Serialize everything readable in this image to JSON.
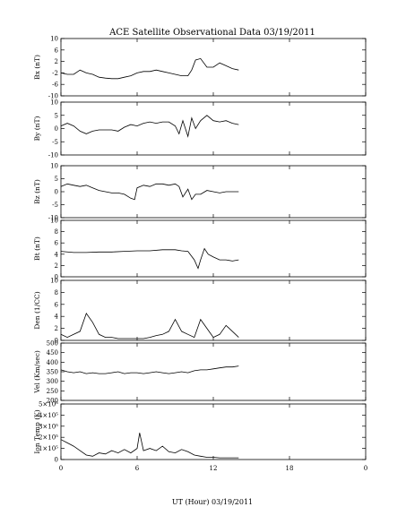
{
  "chart_data": {
    "type": "line",
    "title": "ACE Satellite Observational Data   03/19/2011",
    "xlabel": "UT (Hour)   03/19/2011",
    "x_ticks": [
      "0",
      "6",
      "12",
      "18",
      "0"
    ],
    "xlim": [
      0,
      24
    ],
    "data_extent_hours": 14,
    "grid": false,
    "panels": [
      {
        "name": "Bx",
        "ylabel": "Bx (nT)",
        "ylim": [
          -10,
          10
        ],
        "y_ticks": [
          "10",
          "6",
          "2",
          "-2",
          "-6",
          "-10"
        ],
        "y_tick_values": [
          10,
          6,
          2,
          -2,
          -6,
          -10
        ],
        "x": [
          0,
          0.5,
          1,
          1.5,
          2,
          2.5,
          3,
          3.5,
          4,
          4.5,
          5,
          5.5,
          6,
          6.5,
          7,
          7.5,
          8,
          8.5,
          9,
          9.5,
          10,
          10.3,
          10.6,
          11,
          11.5,
          12,
          12.5,
          13,
          13.5,
          14
        ],
        "y": [
          -2,
          -2.5,
          -2.5,
          -1,
          -2,
          -2.5,
          -3.5,
          -3.8,
          -4,
          -4,
          -3.5,
          -3,
          -2,
          -1.5,
          -1.5,
          -1,
          -1.5,
          -2,
          -2.5,
          -3,
          -3,
          -1,
          2.5,
          3,
          0,
          0,
          1.5,
          0.5,
          -0.5,
          -1
        ]
      },
      {
        "name": "By",
        "ylabel": "By (nT)",
        "ylim": [
          -10,
          10
        ],
        "y_ticks": [
          "10",
          "5",
          "0",
          "-5",
          "-10"
        ],
        "y_tick_values": [
          10,
          5,
          0,
          -5,
          -10
        ],
        "x": [
          0,
          0.5,
          1,
          1.5,
          2,
          2.5,
          3,
          3.5,
          4,
          4.5,
          5,
          5.5,
          6,
          6.5,
          7,
          7.5,
          8,
          8.5,
          9,
          9.3,
          9.6,
          10,
          10.3,
          10.6,
          11,
          11.5,
          12,
          12.5,
          13,
          13.5,
          14
        ],
        "y": [
          1,
          2,
          1,
          -1,
          -2,
          -1,
          -0.5,
          -0.5,
          -0.5,
          -1,
          0.5,
          1.5,
          1,
          2,
          2.5,
          2,
          2.5,
          2.5,
          1,
          -2,
          3,
          -3,
          4,
          0,
          3,
          5,
          3,
          2.5,
          3,
          2,
          1.5
        ]
      },
      {
        "name": "Bz",
        "ylabel": "Bz (nT)",
        "ylim": [
          -10,
          10
        ],
        "y_ticks": [
          "10",
          "5",
          "0",
          "-5",
          "-10"
        ],
        "y_tick_values": [
          10,
          5,
          0,
          -5,
          -10
        ],
        "x": [
          0,
          0.5,
          1,
          1.5,
          2,
          2.5,
          3,
          3.5,
          4,
          4.5,
          5,
          5.5,
          5.8,
          6,
          6.5,
          7,
          7.5,
          8,
          8.5,
          9,
          9.3,
          9.6,
          10,
          10.3,
          10.6,
          11,
          11.5,
          12,
          12.5,
          13,
          13.5,
          14
        ],
        "y": [
          2,
          3,
          2.5,
          2,
          2.5,
          1.5,
          0.5,
          0,
          -0.5,
          -0.5,
          -1,
          -2.5,
          -3,
          1.5,
          2.5,
          2,
          3,
          3,
          2.5,
          3,
          2,
          -2,
          1,
          -3,
          -1,
          -1,
          0.5,
          0,
          -0.5,
          0,
          0,
          0
        ]
      },
      {
        "name": "Bt",
        "ylabel": "Bt (nT)",
        "ylim": [
          0,
          10
        ],
        "y_ticks": [
          "10",
          "8",
          "6",
          "4",
          "2",
          "0"
        ],
        "y_tick_values": [
          10,
          8,
          6,
          4,
          2,
          0
        ],
        "x": [
          0,
          1,
          2,
          3,
          4,
          5,
          6,
          7,
          8,
          9,
          9.5,
          10,
          10.5,
          10.8,
          11,
          11.3,
          11.6,
          12,
          12.5,
          13,
          13.5,
          14
        ],
        "y": [
          4.5,
          4.3,
          4.3,
          4.4,
          4.4,
          4.5,
          4.6,
          4.6,
          4.8,
          4.8,
          4.6,
          4.5,
          3,
          1.5,
          3,
          5,
          4,
          3.5,
          3,
          3,
          2.8,
          3
        ]
      },
      {
        "name": "Den",
        "ylabel": "Den (1/CC)",
        "ylim": [
          0,
          10
        ],
        "y_ticks": [
          "10",
          "8",
          "6",
          "4",
          "2",
          "0"
        ],
        "y_tick_values": [
          10,
          8,
          6,
          4,
          2,
          0
        ],
        "x": [
          0,
          0.5,
          1,
          1.5,
          2,
          2.5,
          3,
          3.5,
          4,
          4.5,
          5,
          5.5,
          6,
          6.5,
          7,
          7.5,
          8,
          8.5,
          9,
          9.5,
          10,
          10.5,
          11,
          11.5,
          12,
          12.5,
          13,
          13.5,
          14
        ],
        "y": [
          1,
          0.5,
          1,
          1.5,
          4.5,
          3,
          1,
          0.5,
          0.5,
          0.3,
          0.3,
          0.3,
          0.3,
          0.3,
          0.5,
          0.8,
          1,
          1.5,
          3.5,
          1.5,
          1,
          0.5,
          3.5,
          2,
          0.5,
          1,
          2.5,
          1.5,
          0.5
        ]
      },
      {
        "name": "Vel",
        "ylabel": "Vel (Km/sec)",
        "ylim": [
          200,
          500
        ],
        "y_ticks": [
          "500",
          "450",
          "400",
          "350",
          "300",
          "250",
          "200"
        ],
        "y_tick_values": [
          500,
          450,
          400,
          350,
          300,
          250,
          200
        ],
        "x": [
          0,
          0.5,
          1,
          1.5,
          2,
          2.5,
          3,
          3.5,
          4,
          4.5,
          5,
          5.5,
          6,
          6.5,
          7,
          7.5,
          8,
          8.5,
          9,
          9.5,
          10,
          10.5,
          11,
          11.5,
          12,
          12.5,
          13,
          13.5,
          14
        ],
        "y": [
          360,
          350,
          345,
          350,
          340,
          345,
          340,
          340,
          345,
          350,
          340,
          345,
          345,
          340,
          345,
          350,
          345,
          340,
          345,
          350,
          345,
          355,
          360,
          360,
          365,
          370,
          375,
          375,
          380
        ]
      },
      {
        "name": "Ion Temp",
        "ylabel": "Ion Temp (K)",
        "ylim": [
          0,
          500000
        ],
        "y_ticks": [
          "5×10⁵",
          "4×10⁵",
          "3×10⁵",
          "2×10⁵",
          "1×10⁵",
          "0"
        ],
        "y_tick_values": [
          500000,
          400000,
          300000,
          200000,
          100000,
          0
        ],
        "x": [
          0,
          0.5,
          1,
          1.5,
          2,
          2.5,
          3,
          3.5,
          4,
          4.5,
          5,
          5.5,
          6,
          6.2,
          6.5,
          7,
          7.5,
          8,
          8.5,
          9,
          9.5,
          10,
          10.5,
          11,
          11.5,
          12,
          12.5,
          13,
          13.5,
          14
        ],
        "y": [
          180000,
          150000,
          120000,
          80000,
          40000,
          30000,
          60000,
          50000,
          80000,
          60000,
          90000,
          60000,
          100000,
          240000,
          80000,
          100000,
          80000,
          120000,
          70000,
          60000,
          90000,
          70000,
          40000,
          30000,
          20000,
          20000,
          15000,
          15000,
          15000,
          15000
        ]
      }
    ]
  }
}
